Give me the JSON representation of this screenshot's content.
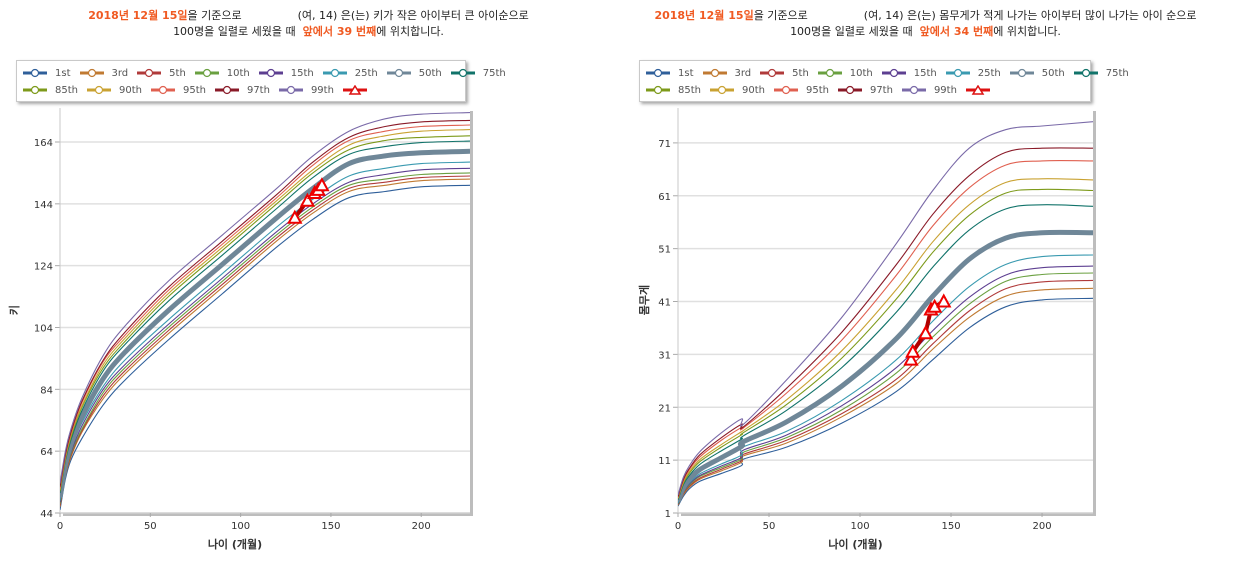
{
  "panels": [
    {
      "caption": {
        "date": "2018년 12월 15일",
        "after_date": "을 기준으로",
        "subject": "(여, 14) 은(는) 키가 작은 아이부터 큰 아이순으로",
        "line2_prefix": "100명을 일렬로 세웠을 때",
        "rank": "앞에서 39 번째",
        "line2_suffix": "에 위치합니다."
      }
    },
    {
      "caption": {
        "date": "2018년 12월 15일",
        "after_date": "을 기준으로",
        "subject": "(여, 14) 은(는) 몸무게가 적게 나가는 아이부터 많이 나가는 아이 순으로",
        "line2_prefix": "100명을 일렬로 세웠을 때",
        "rank": "앞에서 34 번째",
        "line2_suffix": "에 위치합니다."
      }
    }
  ],
  "legend": [
    {
      "label": "1st",
      "color": "#2f5f9a"
    },
    {
      "label": "3rd",
      "color": "#c07a32"
    },
    {
      "label": "5th",
      "color": "#b03a3a"
    },
    {
      "label": "10th",
      "color": "#6aa040"
    },
    {
      "label": "15th",
      "color": "#5d3f91"
    },
    {
      "label": "25th",
      "color": "#3a9ab0"
    },
    {
      "label": "50th",
      "color": "#6f8798"
    },
    {
      "label": "75th",
      "color": "#11736a"
    },
    {
      "label": "85th",
      "color": "#7d9a1a"
    },
    {
      "label": "90th",
      "color": "#c9a232"
    },
    {
      "label": "95th",
      "color": "#e06050"
    },
    {
      "label": "97th",
      "color": "#8a1a28"
    },
    {
      "label": "99th",
      "color": "#7a6aa8"
    },
    {
      "label": "",
      "color": "#dd1111",
      "marker": "triangle"
    }
  ],
  "chart_data": [
    {
      "type": "line",
      "title": "",
      "xlabel": "나이 (개월)",
      "ylabel": "키",
      "xlim": [
        0,
        227
      ],
      "ylim": [
        44,
        175
      ],
      "xticks": [
        0,
        50,
        100,
        150,
        200
      ],
      "yticks": [
        44,
        64,
        84,
        104,
        124,
        144,
        164
      ],
      "grid": true,
      "legend_position": "top",
      "x": [
        0,
        3,
        6,
        12,
        24,
        36,
        60,
        90,
        120,
        140,
        160,
        180,
        200,
        227
      ],
      "series": [
        {
          "name": "1st",
          "values": [
            45,
            55,
            61,
            68,
            79,
            87,
            100,
            115,
            130,
            139,
            146,
            148,
            149.5,
            150
          ]
        },
        {
          "name": "3rd",
          "values": [
            46,
            56,
            62,
            70,
            81,
            89,
            102,
            117,
            132,
            141,
            148,
            150,
            151.5,
            152
          ]
        },
        {
          "name": "5th",
          "values": [
            46.5,
            56.5,
            62.5,
            70.5,
            82,
            90,
            103,
            118,
            133,
            142,
            149,
            151,
            152.5,
            153
          ]
        },
        {
          "name": "10th",
          "values": [
            47,
            57,
            63,
            71,
            83,
            91,
            104,
            119,
            134,
            143,
            150,
            152,
            153.5,
            154
          ]
        },
        {
          "name": "15th",
          "values": [
            47.5,
            57.5,
            63.5,
            72,
            84,
            92,
            105,
            120,
            135,
            144,
            151,
            153.5,
            155,
            155.5
          ]
        },
        {
          "name": "25th",
          "values": [
            48,
            58,
            64.5,
            73,
            85,
            93.5,
            106.5,
            121.5,
            136.5,
            145.5,
            153,
            155.5,
            157,
            157.5
          ]
        },
        {
          "name": "50th",
          "values": [
            49,
            59.5,
            66,
            75,
            87.5,
            96,
            109.5,
            124.5,
            139.5,
            149,
            157,
            159.5,
            160.5,
            161
          ]
        },
        {
          "name": "75th",
          "values": [
            50.5,
            61,
            67.5,
            77,
            90,
            98.5,
            112.5,
            127.5,
            142.5,
            152.5,
            160,
            162.5,
            163.8,
            164.3
          ]
        },
        {
          "name": "85th",
          "values": [
            51,
            61.5,
            68.3,
            78,
            91,
            99.5,
            114,
            129,
            144,
            154,
            161.5,
            164.5,
            165.5,
            166
          ]
        },
        {
          "name": "90th",
          "values": [
            51.5,
            62,
            69,
            78.5,
            92,
            100.5,
            115,
            130,
            145,
            155,
            163,
            166,
            167.5,
            168
          ]
        },
        {
          "name": "95th",
          "values": [
            52,
            62.5,
            69.5,
            79.5,
            93,
            101.5,
            116,
            131,
            146,
            156.5,
            164.5,
            167.5,
            169,
            169.5
          ]
        },
        {
          "name": "97th",
          "values": [
            52.5,
            63,
            70,
            80,
            93.5,
            102.5,
            117,
            132,
            147,
            157.5,
            165.5,
            169,
            170.5,
            171
          ]
        },
        {
          "name": "99th",
          "values": [
            53.5,
            64,
            71,
            81,
            95,
            104.5,
            119,
            134,
            149,
            159.5,
            167.5,
            171.5,
            173,
            173.5
          ]
        }
      ],
      "child": {
        "x": [
          130,
          137,
          141,
          143,
          145
        ],
        "values": [
          139.5,
          145,
          147.5,
          148.5,
          150
        ]
      }
    },
    {
      "type": "line",
      "title": "",
      "xlabel": "나이 (개월)",
      "ylabel": "몸무게",
      "xlim": [
        0,
        228
      ],
      "ylim": [
        1,
        77.6
      ],
      "xticks": [
        0,
        50,
        100,
        150,
        200
      ],
      "yticks": [
        1,
        11,
        21,
        31,
        41,
        51,
        61,
        71
      ],
      "grid": true,
      "legend_position": "top",
      "x": [
        0,
        3,
        6,
        12,
        24,
        35,
        36,
        60,
        90,
        120,
        140,
        160,
        180,
        200,
        228
      ],
      "series": [
        {
          "name": "1st",
          "values": [
            2.3,
            4.2,
            5.5,
            7,
            8.5,
            10,
            11.2,
            13.5,
            18,
            24,
            30,
            36,
            40,
            41.3,
            41.6
          ]
        },
        {
          "name": "3rd",
          "values": [
            2.5,
            4.5,
            5.8,
            7.4,
            9,
            10.6,
            11.8,
            14.3,
            19.2,
            25.5,
            32,
            38,
            42,
            43.2,
            43.5
          ]
        },
        {
          "name": "5th",
          "values": [
            2.6,
            4.7,
            6,
            7.6,
            9.3,
            10.9,
            12.1,
            14.8,
            19.8,
            26.3,
            33,
            39.2,
            43.4,
            44.7,
            45
          ]
        },
        {
          "name": "10th",
          "values": [
            2.7,
            4.9,
            6.2,
            7.9,
            9.6,
            11.2,
            12.5,
            15.3,
            20.5,
            27.5,
            34.3,
            40.5,
            44.8,
            46.1,
            46.4
          ]
        },
        {
          "name": "15th",
          "values": [
            2.8,
            5,
            6.4,
            8.1,
            9.9,
            11.5,
            12.9,
            15.8,
            21.3,
            28.5,
            35.5,
            41.8,
            46,
            47.4,
            47.7
          ]
        },
        {
          "name": "25th",
          "values": [
            2.9,
            5.2,
            6.6,
            8.4,
            10.3,
            12,
            13.5,
            16.5,
            22.3,
            30,
            37.3,
            43.8,
            48,
            49.5,
            49.8
          ]
        },
        {
          "name": "50th",
          "values": [
            3.2,
            5.8,
            7.3,
            9.2,
            11.5,
            13.6,
            14.5,
            18.3,
            25,
            34,
            42,
            49,
            53,
            54,
            54
          ]
        },
        {
          "name": "75th",
          "values": [
            3.5,
            6.4,
            8,
            10.2,
            12.8,
            15,
            15.6,
            20.5,
            28.5,
            39,
            47.5,
            54.5,
            58.5,
            59.3,
            59
          ]
        },
        {
          "name": "85th",
          "values": [
            3.7,
            6.7,
            8.4,
            10.7,
            13.5,
            15.8,
            16.2,
            21.6,
            30.3,
            41.5,
            50.3,
            57.3,
            61.5,
            62.2,
            62
          ]
        },
        {
          "name": "90th",
          "values": [
            3.8,
            6.9,
            8.7,
            11.1,
            14,
            16.4,
            16.6,
            22.5,
            31.7,
            43.3,
            52.3,
            59.3,
            63.5,
            64.2,
            64
          ]
        },
        {
          "name": "95th",
          "values": [
            4,
            7.2,
            9.1,
            11.6,
            14.8,
            17.2,
            17.1,
            23.8,
            33.7,
            46,
            55.3,
            62.5,
            66.8,
            67.6,
            67.6
          ]
        },
        {
          "name": "97th",
          "values": [
            4.1,
            7.4,
            9.3,
            12,
            15.3,
            17.8,
            17.3,
            24.7,
            35.2,
            48,
            57.5,
            64.8,
            69.2,
            70,
            70
          ]
        },
        {
          "name": "99th",
          "values": [
            4.4,
            7.8,
            9.8,
            12.6,
            16.2,
            18.8,
            17.8,
            26.3,
            38,
            52,
            62,
            70,
            73.5,
            74.2,
            75
          ]
        }
      ],
      "child": {
        "x": [
          128,
          129,
          136,
          139,
          141,
          146
        ],
        "values": [
          30,
          31.5,
          35,
          39.5,
          40,
          41
        ]
      }
    }
  ]
}
